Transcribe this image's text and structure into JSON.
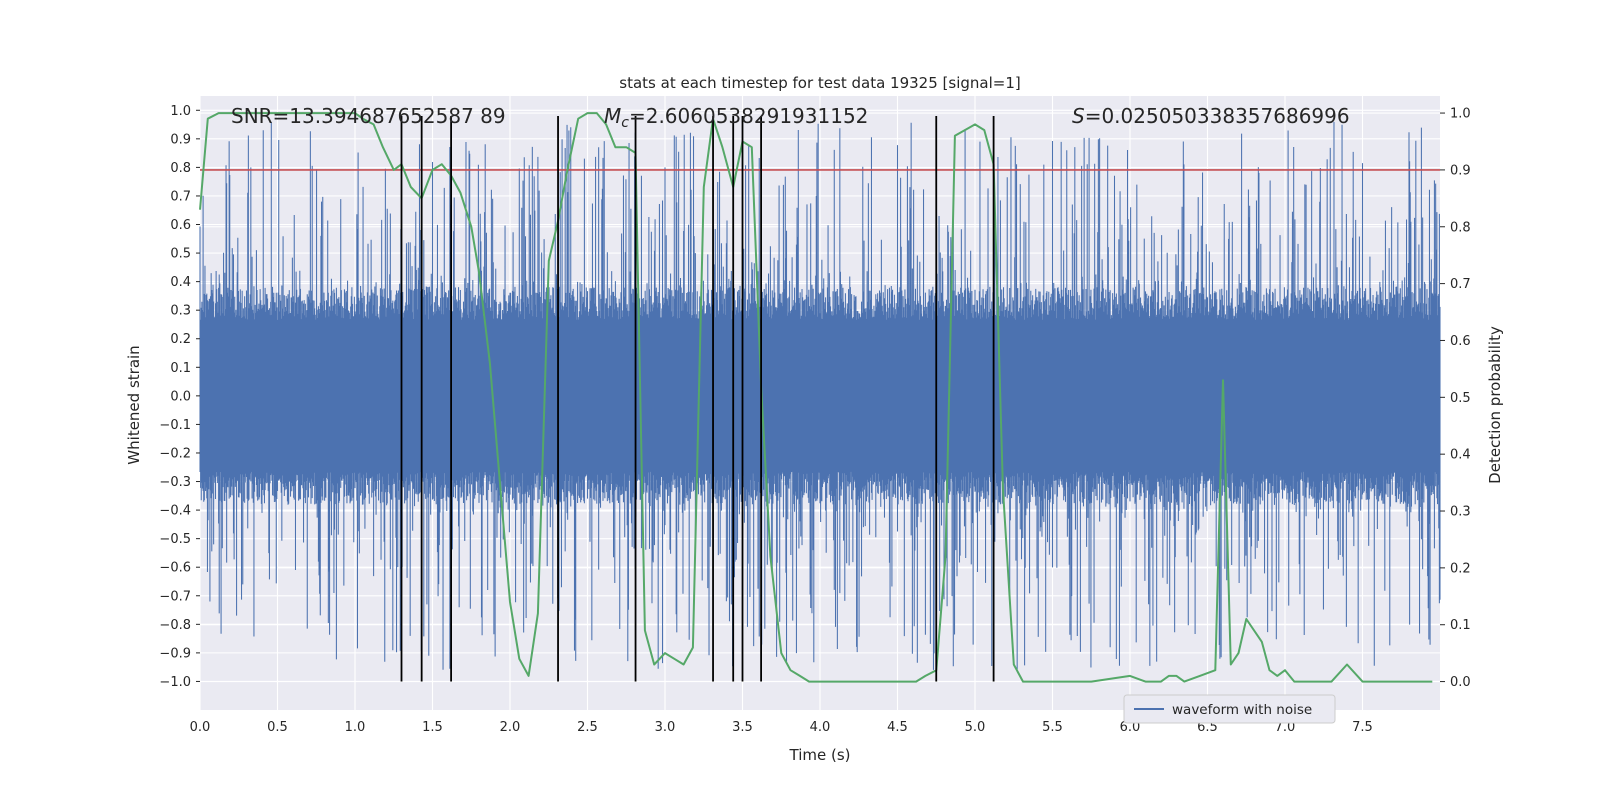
{
  "chart_data": {
    "type": "line",
    "title": "stats at each timestep for test data 19325 [signal=1]",
    "xlabel": "Time (s)",
    "ylabel_left": "Whitened strain",
    "ylabel_right": "Detection probability",
    "xlim": [
      0,
      8
    ],
    "ylim_left": [
      -1.1,
      1.05
    ],
    "ylim_right": [
      -0.05,
      1.03
    ],
    "x_ticks": [
      0.0,
      0.5,
      1.0,
      1.5,
      2.0,
      2.5,
      3.0,
      3.5,
      4.0,
      4.5,
      5.0,
      5.5,
      6.0,
      6.5,
      7.0,
      7.5
    ],
    "x_tick_labels": [
      "0.0",
      "0.5",
      "1.0",
      "1.5",
      "2.0",
      "2.5",
      "3.0",
      "3.5",
      "4.0",
      "4.5",
      "5.0",
      "5.5",
      "6.0",
      "6.5",
      "7.0",
      "7.5"
    ],
    "y_left_ticks": [
      -1.0,
      -0.9,
      -0.8,
      -0.7,
      -0.6,
      -0.5,
      -0.4,
      -0.3,
      -0.2,
      -0.1,
      0.0,
      0.1,
      0.2,
      0.3,
      0.4,
      0.5,
      0.6,
      0.7,
      0.8,
      0.9,
      1.0
    ],
    "y_left_tick_labels": [
      "−1.0",
      "−0.9",
      "−0.8",
      "−0.7",
      "−0.6",
      "−0.5",
      "−0.4",
      "−0.3",
      "−0.2",
      "−0.1",
      "0.0",
      "0.1",
      "0.2",
      "0.3",
      "0.4",
      "0.5",
      "0.6",
      "0.7",
      "0.8",
      "0.9",
      "1.0"
    ],
    "y_right_ticks": [
      0.0,
      0.1,
      0.2,
      0.3,
      0.4,
      0.5,
      0.6,
      0.7,
      0.8,
      0.9,
      1.0
    ],
    "y_right_tick_labels": [
      "0.0",
      "0.1",
      "0.2",
      "0.3",
      "0.4",
      "0.5",
      "0.6",
      "0.7",
      "0.8",
      "0.9",
      "1.0"
    ],
    "grid": true,
    "annotations": {
      "snr": "SNR=13.394687652587 89",
      "mc_prefix": "M",
      "mc_sub": "c",
      "mc_value": "=2.6060538291931152",
      "s_prefix": "S",
      "s_value": "=0.025050338357686996"
    },
    "legend": {
      "position": "lower-right",
      "entries": [
        "waveform with noise"
      ]
    },
    "threshold": {
      "axis": "right",
      "value": 0.9,
      "color": "#c44e52"
    },
    "detection_vlines": [
      1.3,
      1.43,
      1.62,
      2.31,
      2.81,
      3.31,
      3.44,
      3.5,
      3.62,
      4.75,
      5.12
    ],
    "waveform": {
      "name": "waveform with noise",
      "color": "#4c72b0",
      "dt": 0.004,
      "envelope_abs": 0.38,
      "spike_max_abs": 0.96
    },
    "probability": {
      "color": "#55a868",
      "x": [
        0.0,
        0.05,
        0.12,
        0.25,
        0.5,
        0.75,
        1.0,
        1.05,
        1.12,
        1.18,
        1.25,
        1.3,
        1.36,
        1.43,
        1.5,
        1.56,
        1.62,
        1.68,
        1.75,
        1.8,
        1.87,
        1.95,
        2.0,
        2.06,
        2.12,
        2.18,
        2.25,
        2.31,
        2.37,
        2.44,
        2.5,
        2.56,
        2.62,
        2.68,
        2.75,
        2.81,
        2.87,
        2.93,
        3.0,
        3.06,
        3.12,
        3.18,
        3.25,
        3.31,
        3.37,
        3.44,
        3.5,
        3.56,
        3.62,
        3.68,
        3.75,
        3.81,
        3.87,
        3.93,
        4.0,
        4.06,
        4.12,
        4.25,
        4.5,
        4.62,
        4.68,
        4.75,
        4.81,
        4.87,
        5.0,
        5.06,
        5.12,
        5.18,
        5.25,
        5.31,
        5.5,
        5.75,
        6.0,
        6.1,
        6.2,
        6.25,
        6.3,
        6.35,
        6.45,
        6.55,
        6.6,
        6.65,
        6.7,
        6.75,
        6.85,
        6.9,
        6.95,
        7.0,
        7.06,
        7.12,
        7.2,
        7.3,
        7.4,
        7.5,
        7.62,
        7.7,
        7.75,
        7.82,
        7.87,
        7.95
      ],
      "y": [
        0.83,
        0.99,
        1.0,
        1.0,
        1.0,
        1.0,
        1.0,
        0.99,
        0.98,
        0.94,
        0.9,
        0.91,
        0.87,
        0.85,
        0.9,
        0.91,
        0.89,
        0.86,
        0.8,
        0.72,
        0.56,
        0.3,
        0.14,
        0.04,
        0.01,
        0.12,
        0.74,
        0.81,
        0.9,
        0.99,
        1.0,
        1.0,
        0.98,
        0.94,
        0.94,
        0.93,
        0.09,
        0.03,
        0.05,
        0.04,
        0.03,
        0.06,
        0.87,
        0.99,
        0.94,
        0.87,
        0.95,
        0.94,
        0.52,
        0.22,
        0.05,
        0.02,
        0.01,
        0.0,
        0.0,
        0.0,
        0.0,
        0.0,
        0.0,
        0.0,
        0.01,
        0.02,
        0.22,
        0.96,
        0.98,
        0.97,
        0.91,
        0.34,
        0.03,
        0.0,
        0.0,
        0.0,
        0.01,
        0.0,
        0.0,
        0.01,
        0.01,
        0.0,
        0.01,
        0.02,
        0.53,
        0.03,
        0.05,
        0.11,
        0.07,
        0.02,
        0.01,
        0.02,
        0.0,
        0.0,
        0.0,
        0.0,
        0.03,
        0.0,
        0.0,
        0.0,
        0.0,
        0.0,
        0.0,
        0.0
      ]
    }
  }
}
